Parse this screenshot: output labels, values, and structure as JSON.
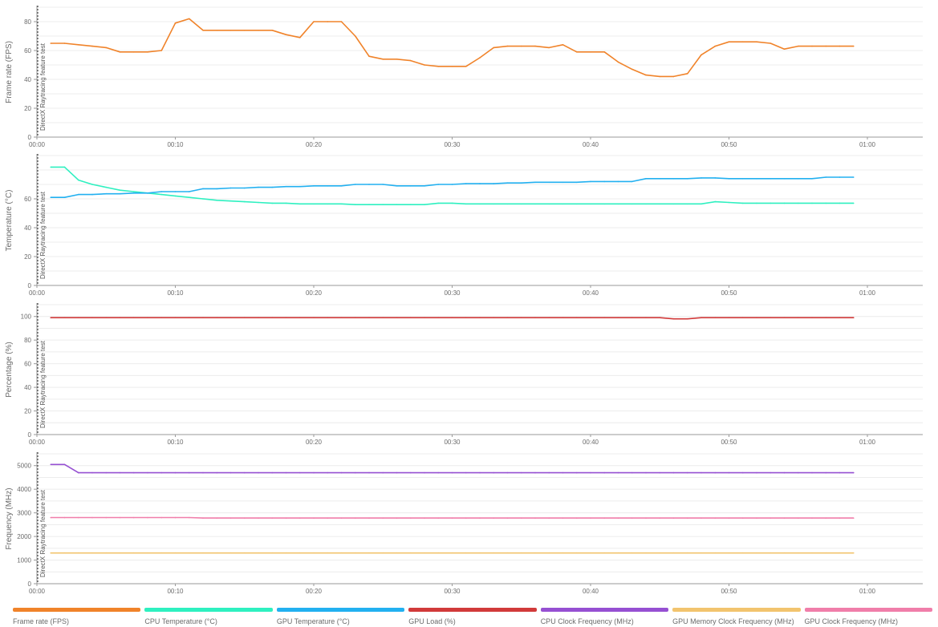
{
  "annotation_label": "DirectX Raytracing feature test",
  "x_ticks": [
    "00:00",
    "00:10",
    "00:20",
    "00:30",
    "00:40",
    "00:50",
    "01:00"
  ],
  "colors": {
    "fps": "#f0832a",
    "cpu_temp": "#2ef0c0",
    "gpu_temp": "#22b0f0",
    "gpu_load": "#d13a3a",
    "cpu_clock": "#9650d2",
    "gpu_mem_clock": "#f2c46e",
    "gpu_clock": "#f07eaa"
  },
  "legend": [
    {
      "label": "Frame rate (FPS)",
      "color": "#f0832a"
    },
    {
      "label": "CPU Temperature (°C)",
      "color": "#2ef0c0"
    },
    {
      "label": "GPU Temperature (°C)",
      "color": "#22b0f0"
    },
    {
      "label": "GPU Load (%)",
      "color": "#d13a3a"
    },
    {
      "label": "CPU Clock Frequency (MHz)",
      "color": "#9650d2"
    },
    {
      "label": "GPU Memory Clock Frequency (MHz)",
      "color": "#f2c46e"
    },
    {
      "label": "GPU Clock Frequency (MHz)",
      "color": "#f07eaa"
    }
  ],
  "chart_data": [
    {
      "type": "line",
      "ylabel": "Frame rate (FPS)",
      "xlim": [
        "00:00",
        "01:04"
      ],
      "ylim": [
        0,
        90
      ],
      "y_ticks": [
        0,
        20,
        40,
        60,
        80
      ],
      "grid": true,
      "annotation": {
        "x": "00:00",
        "label": "DirectX Raytracing feature test"
      },
      "x": [
        "00:01",
        "00:02",
        "00:03",
        "00:04",
        "00:05",
        "00:06",
        "00:07",
        "00:08",
        "00:09",
        "00:10",
        "00:11",
        "00:12",
        "00:13",
        "00:14",
        "00:15",
        "00:16",
        "00:17",
        "00:18",
        "00:19",
        "00:20",
        "00:21",
        "00:22",
        "00:23",
        "00:24",
        "00:25",
        "00:26",
        "00:27",
        "00:28",
        "00:29",
        "00:30",
        "00:31",
        "00:32",
        "00:33",
        "00:34",
        "00:35",
        "00:36",
        "00:37",
        "00:38",
        "00:39",
        "00:40",
        "00:41",
        "00:42",
        "00:43",
        "00:44",
        "00:45",
        "00:46",
        "00:47",
        "00:48",
        "00:49",
        "00:50",
        "00:51",
        "00:52",
        "00:53",
        "00:54",
        "00:55",
        "00:56",
        "00:57",
        "00:58",
        "00:59"
      ],
      "series": [
        {
          "name": "Frame rate (FPS)",
          "color": "#f0832a",
          "values": [
            65,
            65,
            64,
            63,
            62,
            59,
            59,
            59,
            60,
            79,
            82,
            74,
            74,
            74,
            74,
            74,
            74,
            71,
            69,
            80,
            80,
            80,
            70,
            56,
            54,
            54,
            53,
            50,
            49,
            49,
            49,
            55,
            62,
            63,
            63,
            63,
            62,
            64,
            59,
            59,
            59,
            52,
            47,
            43,
            42,
            42,
            44,
            57,
            63,
            66,
            66,
            66,
            65,
            61,
            63,
            63,
            63,
            63,
            63
          ]
        }
      ]
    },
    {
      "type": "line",
      "ylabel": "Temperature (°C)",
      "xlim": [
        "00:00",
        "01:04"
      ],
      "ylim": [
        0,
        90
      ],
      "y_ticks": [
        0,
        20,
        40,
        60
      ],
      "grid": true,
      "annotation": {
        "x": "00:00",
        "label": "DirectX Raytracing feature test"
      },
      "x": [
        "00:01",
        "00:02",
        "00:03",
        "00:04",
        "00:05",
        "00:06",
        "00:07",
        "00:08",
        "00:09",
        "00:10",
        "00:11",
        "00:12",
        "00:13",
        "00:14",
        "00:15",
        "00:16",
        "00:17",
        "00:18",
        "00:19",
        "00:20",
        "00:21",
        "00:22",
        "00:23",
        "00:24",
        "00:25",
        "00:26",
        "00:27",
        "00:28",
        "00:29",
        "00:30",
        "00:31",
        "00:32",
        "00:33",
        "00:34",
        "00:35",
        "00:36",
        "00:37",
        "00:38",
        "00:39",
        "00:40",
        "00:41",
        "00:42",
        "00:43",
        "00:44",
        "00:45",
        "00:46",
        "00:47",
        "00:48",
        "00:49",
        "00:50",
        "00:51",
        "00:52",
        "00:53",
        "00:54",
        "00:55",
        "00:56",
        "00:57",
        "00:58",
        "00:59"
      ],
      "series": [
        {
          "name": "CPU Temperature (°C)",
          "color": "#2ef0c0",
          "values": [
            82,
            82,
            73,
            70,
            68,
            66,
            65,
            64,
            63,
            62,
            61,
            60,
            59,
            58.5,
            58,
            57.5,
            57,
            57,
            56.5,
            56.5,
            56.5,
            56.5,
            56,
            56,
            56,
            56,
            56,
            56,
            57,
            57,
            56.5,
            56.5,
            56.5,
            56.5,
            56.5,
            56.5,
            56.5,
            56.5,
            56.5,
            56.5,
            56.5,
            56.5,
            56.5,
            56.5,
            56.5,
            56.5,
            56.5,
            56.5,
            58,
            57.5,
            57,
            57,
            57,
            57,
            57,
            57,
            57,
            57,
            57
          ]
        },
        {
          "name": "GPU Temperature (°C)",
          "color": "#22b0f0",
          "values": [
            61,
            61,
            63,
            63,
            63.5,
            63.5,
            64,
            64,
            65,
            65,
            65,
            67,
            67,
            67.5,
            67.5,
            68,
            68,
            68.5,
            68.5,
            69,
            69,
            69,
            70,
            70,
            70,
            69,
            69,
            69,
            70,
            70,
            70.5,
            70.5,
            70.5,
            71,
            71,
            71.5,
            71.5,
            71.5,
            71.5,
            72,
            72,
            72,
            72,
            74,
            74,
            74,
            74,
            74.5,
            74.5,
            74,
            74,
            74,
            74,
            74,
            74,
            74,
            75,
            75,
            75
          ]
        }
      ]
    },
    {
      "type": "line",
      "ylabel": "Percentage (%)",
      "xlim": [
        "00:00",
        "01:04"
      ],
      "ylim": [
        0,
        110
      ],
      "y_ticks": [
        0,
        20,
        40,
        60,
        80,
        100
      ],
      "grid": true,
      "annotation": {
        "x": "00:00",
        "label": "DirectX Raytracing feature test"
      },
      "x": [
        "00:01",
        "00:02",
        "00:03",
        "00:04",
        "00:05",
        "00:06",
        "00:07",
        "00:08",
        "00:09",
        "00:10",
        "00:11",
        "00:12",
        "00:13",
        "00:14",
        "00:15",
        "00:16",
        "00:17",
        "00:18",
        "00:19",
        "00:20",
        "00:21",
        "00:22",
        "00:23",
        "00:24",
        "00:25",
        "00:26",
        "00:27",
        "00:28",
        "00:29",
        "00:30",
        "00:31",
        "00:32",
        "00:33",
        "00:34",
        "00:35",
        "00:36",
        "00:37",
        "00:38",
        "00:39",
        "00:40",
        "00:41",
        "00:42",
        "00:43",
        "00:44",
        "00:45",
        "00:46",
        "00:47",
        "00:48",
        "00:49",
        "00:50",
        "00:51",
        "00:52",
        "00:53",
        "00:54",
        "00:55",
        "00:56",
        "00:57",
        "00:58",
        "00:59"
      ],
      "series": [
        {
          "name": "GPU Load (%)",
          "color": "#d13a3a",
          "values": [
            99,
            99,
            99,
            99,
            99,
            99,
            99,
            99,
            99,
            99,
            99,
            99,
            99,
            99,
            99,
            99,
            99,
            99,
            99,
            99,
            99,
            99,
            99,
            99,
            99,
            99,
            99,
            99,
            99,
            99,
            99,
            99,
            99,
            99,
            99,
            99,
            99,
            99,
            99,
            99,
            99,
            99,
            99,
            99,
            99,
            98,
            98,
            99,
            99,
            99,
            99,
            99,
            99,
            99,
            99,
            99,
            99,
            99,
            99
          ]
        }
      ]
    },
    {
      "type": "line",
      "ylabel": "Frequency (MHz)",
      "xlim": [
        "00:00",
        "01:04"
      ],
      "ylim": [
        0,
        5500
      ],
      "y_ticks": [
        0,
        1000,
        2000,
        3000,
        4000,
        5000
      ],
      "grid": true,
      "annotation": {
        "x": "00:00",
        "label": "DirectX Raytracing feature test"
      },
      "x": [
        "00:01",
        "00:02",
        "00:03",
        "00:04",
        "00:05",
        "00:06",
        "00:07",
        "00:08",
        "00:09",
        "00:10",
        "00:11",
        "00:12",
        "00:13",
        "00:14",
        "00:15",
        "00:16",
        "00:17",
        "00:18",
        "00:19",
        "00:20",
        "00:21",
        "00:22",
        "00:23",
        "00:24",
        "00:25",
        "00:26",
        "00:27",
        "00:28",
        "00:29",
        "00:30",
        "00:31",
        "00:32",
        "00:33",
        "00:34",
        "00:35",
        "00:36",
        "00:37",
        "00:38",
        "00:39",
        "00:40",
        "00:41",
        "00:42",
        "00:43",
        "00:44",
        "00:45",
        "00:46",
        "00:47",
        "00:48",
        "00:49",
        "00:50",
        "00:51",
        "00:52",
        "00:53",
        "00:54",
        "00:55",
        "00:56",
        "00:57",
        "00:58",
        "00:59"
      ],
      "series": [
        {
          "name": "CPU Clock Frequency (MHz)",
          "color": "#9650d2",
          "values": [
            5050,
            5050,
            4700,
            4700,
            4700,
            4700,
            4700,
            4700,
            4700,
            4700,
            4700,
            4700,
            4700,
            4700,
            4700,
            4700,
            4700,
            4700,
            4700,
            4700,
            4700,
            4700,
            4700,
            4700,
            4700,
            4700,
            4700,
            4700,
            4700,
            4700,
            4700,
            4700,
            4700,
            4700,
            4700,
            4700,
            4700,
            4700,
            4700,
            4700,
            4700,
            4700,
            4700,
            4700,
            4700,
            4700,
            4700,
            4700,
            4700,
            4700,
            4700,
            4700,
            4700,
            4700,
            4700,
            4700,
            4700,
            4700,
            4700
          ]
        },
        {
          "name": "GPU Memory Clock Frequency (MHz)",
          "color": "#f2c46e",
          "values": [
            1300,
            1300,
            1300,
            1300,
            1300,
            1300,
            1300,
            1300,
            1300,
            1300,
            1300,
            1300,
            1300,
            1300,
            1300,
            1300,
            1300,
            1300,
            1300,
            1300,
            1300,
            1300,
            1300,
            1300,
            1300,
            1300,
            1300,
            1300,
            1300,
            1300,
            1300,
            1300,
            1300,
            1300,
            1300,
            1300,
            1300,
            1300,
            1300,
            1300,
            1300,
            1300,
            1300,
            1300,
            1300,
            1300,
            1300,
            1300,
            1300,
            1300,
            1300,
            1300,
            1300,
            1300,
            1300,
            1300,
            1300,
            1300,
            1300
          ]
        },
        {
          "name": "GPU Clock Frequency (MHz)",
          "color": "#f07eaa",
          "values": [
            2800,
            2800,
            2800,
            2800,
            2800,
            2800,
            2800,
            2800,
            2800,
            2800,
            2800,
            2780,
            2780,
            2780,
            2780,
            2780,
            2780,
            2780,
            2780,
            2780,
            2780,
            2780,
            2780,
            2780,
            2780,
            2780,
            2780,
            2780,
            2780,
            2780,
            2780,
            2780,
            2780,
            2780,
            2780,
            2780,
            2780,
            2780,
            2780,
            2780,
            2780,
            2780,
            2780,
            2780,
            2780,
            2780,
            2780,
            2780,
            2780,
            2780,
            2780,
            2780,
            2780,
            2780,
            2780,
            2780,
            2780,
            2780,
            2780
          ]
        }
      ]
    }
  ]
}
